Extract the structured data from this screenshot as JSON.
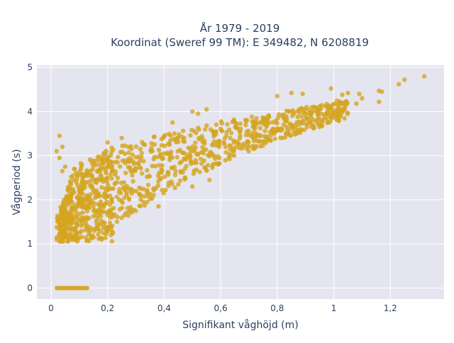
{
  "chart_data": {
    "type": "scatter",
    "title_lines": [
      "År 1979 - 2019",
      "Koordinat (Sweref 99 TM): E 349482, N 6208819"
    ],
    "xlabel": "Signifikant våghöjd (m)",
    "ylabel": "Vågperiod (s)",
    "xlim": [
      -0.05,
      1.39
    ],
    "ylim": [
      -0.25,
      5.05
    ],
    "xticks": [
      0,
      0.2,
      0.4,
      0.6,
      0.8,
      1,
      1.2
    ],
    "xtick_labels": [
      "0",
      "0,2",
      "0,4",
      "0,6",
      "0,8",
      "1",
      "1,2"
    ],
    "yticks": [
      0,
      1,
      2,
      3,
      4,
      5
    ],
    "ytick_labels": [
      "0",
      "1",
      "2",
      "3",
      "4",
      "5"
    ],
    "grid": true,
    "marker_color": "#D4A521",
    "plot_background": "#E5E5EF",
    "description": "Dense cloud of wave observations; period rises roughly with square root of height.",
    "dense_band": [
      {
        "x": 0.03,
        "y_low": 1.05,
        "y_high": 1.6
      },
      {
        "x": 0.05,
        "y_low": 1.05,
        "y_high": 2.1
      },
      {
        "x": 0.08,
        "y_low": 1.05,
        "y_high": 2.7
      },
      {
        "x": 0.12,
        "y_low": 1.05,
        "y_high": 2.95
      },
      {
        "x": 0.17,
        "y_low": 1.2,
        "y_high": 3.05
      },
      {
        "x": 0.22,
        "y_low": 1.4,
        "y_high": 3.2
      },
      {
        "x": 0.28,
        "y_low": 1.65,
        "y_high": 3.35
      },
      {
        "x": 0.35,
        "y_low": 1.95,
        "y_high": 3.45
      },
      {
        "x": 0.42,
        "y_low": 2.2,
        "y_high": 3.55
      },
      {
        "x": 0.5,
        "y_low": 2.5,
        "y_high": 3.65
      },
      {
        "x": 0.58,
        "y_low": 2.75,
        "y_high": 3.75
      },
      {
        "x": 0.66,
        "y_low": 3.0,
        "y_high": 3.85
      },
      {
        "x": 0.74,
        "y_low": 3.2,
        "y_high": 3.95
      },
      {
        "x": 0.82,
        "y_low": 3.4,
        "y_high": 4.0
      },
      {
        "x": 0.9,
        "y_low": 3.55,
        "y_high": 4.1
      },
      {
        "x": 0.98,
        "y_low": 3.7,
        "y_high": 4.2
      },
      {
        "x": 1.05,
        "y_low": 3.85,
        "y_high": 4.3
      }
    ],
    "zero_row": {
      "y": 0,
      "x_from": 0.02,
      "x_to": 0.13
    },
    "outliers": [
      {
        "x": 1.32,
        "y": 4.8
      },
      {
        "x": 1.25,
        "y": 4.72
      },
      {
        "x": 1.23,
        "y": 4.62
      },
      {
        "x": 1.17,
        "y": 4.45
      },
      {
        "x": 1.16,
        "y": 4.47
      },
      {
        "x": 1.09,
        "y": 4.4
      },
      {
        "x": 1.05,
        "y": 4.42
      },
      {
        "x": 1.03,
        "y": 4.38
      },
      {
        "x": 1.08,
        "y": 4.18
      },
      {
        "x": 1.02,
        "y": 4.15
      },
      {
        "x": 1.16,
        "y": 4.22
      },
      {
        "x": 1.1,
        "y": 4.3
      },
      {
        "x": 0.85,
        "y": 4.42
      },
      {
        "x": 0.89,
        "y": 4.4
      },
      {
        "x": 0.99,
        "y": 4.52
      },
      {
        "x": 0.8,
        "y": 4.35
      },
      {
        "x": 0.95,
        "y": 4.05
      },
      {
        "x": 0.9,
        "y": 3.95
      },
      {
        "x": 0.03,
        "y": 3.45
      },
      {
        "x": 0.04,
        "y": 3.2
      },
      {
        "x": 0.02,
        "y": 3.1
      },
      {
        "x": 0.03,
        "y": 2.95
      },
      {
        "x": 0.05,
        "y": 2.75
      },
      {
        "x": 0.04,
        "y": 2.65
      },
      {
        "x": 0.5,
        "y": 2.3
      },
      {
        "x": 0.56,
        "y": 2.45
      },
      {
        "x": 0.45,
        "y": 2.35
      },
      {
        "x": 0.62,
        "y": 3.45
      },
      {
        "x": 0.7,
        "y": 3.2
      },
      {
        "x": 0.72,
        "y": 3.6
      },
      {
        "x": 0.38,
        "y": 1.85
      },
      {
        "x": 0.34,
        "y": 1.95
      },
      {
        "x": 0.3,
        "y": 1.75
      },
      {
        "x": 0.26,
        "y": 1.65
      },
      {
        "x": 0.5,
        "y": 4.0
      },
      {
        "x": 0.55,
        "y": 4.05
      },
      {
        "x": 0.52,
        "y": 3.95
      },
      {
        "x": 0.43,
        "y": 3.75
      },
      {
        "x": 0.25,
        "y": 3.4
      },
      {
        "x": 0.2,
        "y": 3.3
      }
    ]
  }
}
